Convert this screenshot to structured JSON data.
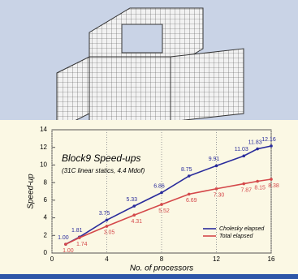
{
  "chart_data": {
    "type": "line",
    "title": "Block9 Speed-ups",
    "subtitle": "(31C linear statics, 4.4 Mdof)",
    "x_label": "No. of processors",
    "y_label": "Speed-up",
    "x": [
      1,
      2,
      4,
      6,
      8,
      10,
      12,
      14,
      15,
      16
    ],
    "series": [
      {
        "name": "Cholesky elapsed",
        "color": "#2a2c9c",
        "values": [
          1,
          1.81,
          3.75,
          5.33,
          6.86,
          8.75,
          9.91,
          11.03,
          11.83,
          12.16
        ],
        "value_labels": [
          "1.00",
          "1.81",
          "3.75",
          "5.33",
          "6.86",
          "8.75",
          "9.91",
          "11.03",
          "11.83",
          "12.16"
        ]
      },
      {
        "name": "Total elapsed",
        "color": "#d4484a",
        "values": [
          1,
          1.74,
          3.05,
          4.31,
          5.52,
          6.69,
          7.3,
          7.87,
          8.15,
          8.38
        ],
        "value_labels": [
          "1.00",
          "1.74",
          "3.05",
          "4.31",
          "5.52",
          "6.69",
          "7.30",
          "7.87",
          "8.15",
          "8.38"
        ]
      }
    ],
    "xlim": [
      0,
      16
    ],
    "xticks": [
      0,
      4,
      8,
      12,
      16
    ],
    "ylim": [
      0,
      14
    ],
    "yticks": [
      0,
      2,
      4,
      6,
      8,
      10,
      12,
      14
    ],
    "grid": true,
    "legend": "lower right"
  }
}
